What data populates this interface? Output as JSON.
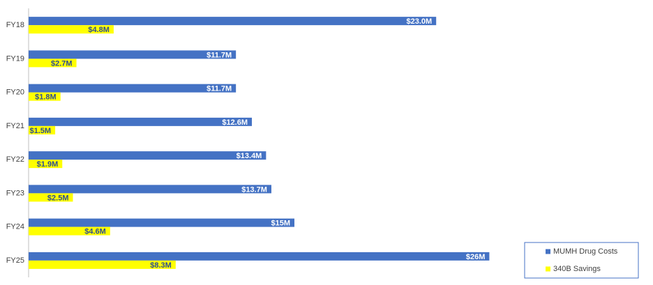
{
  "chart_data": {
    "type": "hbar",
    "categories": [
      "FY18",
      "FY19",
      "FY20",
      "FY21",
      "FY22",
      "FY23",
      "FY24",
      "FY25"
    ],
    "series": [
      {
        "name": "MUMH Drug Costs",
        "color": "#4472c4",
        "label_color": "#ffffff",
        "values": [
          23.0,
          11.7,
          11.7,
          12.6,
          13.4,
          13.7,
          15,
          26
        ],
        "value_labels": [
          "$23.0M",
          "$11.7M",
          "$11.7M",
          "$12.6M",
          "$13.4M",
          "$13.7M",
          "$15M",
          "$26M"
        ]
      },
      {
        "name": "340B Savings",
        "color": "#ffff00",
        "label_color": "#2f4f8f",
        "values": [
          4.8,
          2.7,
          1.8,
          1.5,
          1.9,
          2.5,
          4.6,
          8.3
        ],
        "value_labels": [
          "$4.8M",
          "$2.7M",
          "$1.8M",
          "$1.5M",
          "$1.9M",
          "$2.5M",
          "$4.6M",
          "$8.3M"
        ]
      }
    ],
    "xlim": [
      0,
      35
    ],
    "legend": "lower right"
  }
}
